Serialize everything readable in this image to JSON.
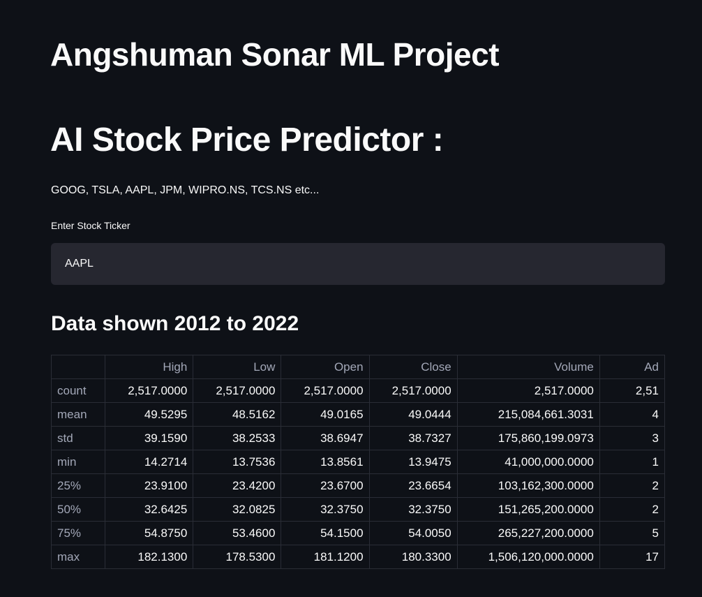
{
  "header": {
    "title": "Angshuman Sonar ML Project",
    "heading": "AI Stock Price Predictor :",
    "examples": "GOOG, TSLA, AAPL, JPM, WIPRO.NS, TCS.NS etc..."
  },
  "ticker_input": {
    "label": "Enter Stock Ticker",
    "value": "AAPL"
  },
  "data_section": {
    "title": "Data shown 2012 to 2022",
    "columns": [
      "",
      "High",
      "Low",
      "Open",
      "Close",
      "Volume",
      "Ad"
    ],
    "rows": [
      {
        "index": "count",
        "values": [
          "2,517.0000",
          "2,517.0000",
          "2,517.0000",
          "2,517.0000",
          "2,517.0000",
          "2,51"
        ]
      },
      {
        "index": "mean",
        "values": [
          "49.5295",
          "48.5162",
          "49.0165",
          "49.0444",
          "215,084,661.3031",
          "4"
        ]
      },
      {
        "index": "std",
        "values": [
          "39.1590",
          "38.2533",
          "38.6947",
          "38.7327",
          "175,860,199.0973",
          "3"
        ]
      },
      {
        "index": "min",
        "values": [
          "14.2714",
          "13.7536",
          "13.8561",
          "13.9475",
          "41,000,000.0000",
          "1"
        ]
      },
      {
        "index": "25%",
        "values": [
          "23.9100",
          "23.4200",
          "23.6700",
          "23.6654",
          "103,162,300.0000",
          "2"
        ]
      },
      {
        "index": "50%",
        "values": [
          "32.6425",
          "32.0825",
          "32.3750",
          "32.3750",
          "151,265,200.0000",
          "2"
        ]
      },
      {
        "index": "75%",
        "values": [
          "54.8750",
          "53.4600",
          "54.1500",
          "54.0050",
          "265,227,200.0000",
          "5"
        ]
      },
      {
        "index": "max",
        "values": [
          "182.1300",
          "178.5300",
          "181.1200",
          "180.3300",
          "1,506,120,000.0000",
          "17"
        ]
      }
    ]
  }
}
